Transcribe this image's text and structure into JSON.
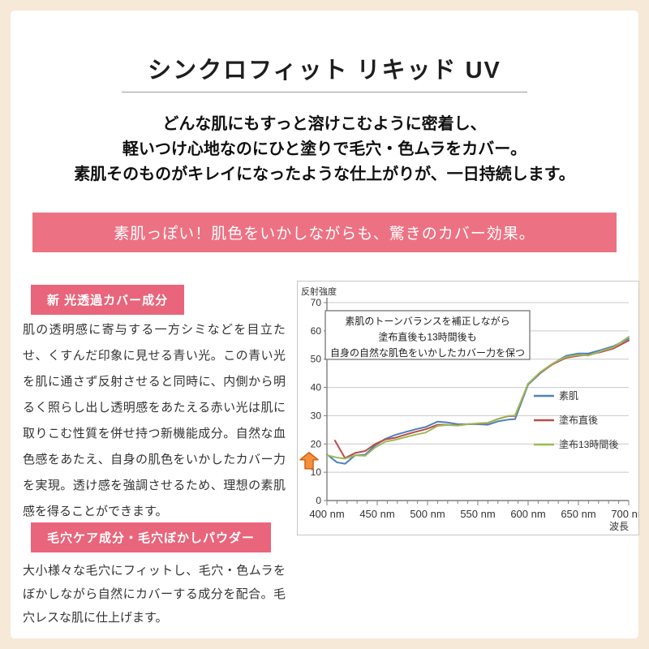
{
  "page": {
    "title": "シンクロフィット リキッド UV",
    "intro_lines": [
      "どんな肌にもすっと溶けこむように密着し、",
      "軽いつけ心地なのにひと塗りで毛穴・色ムラをカバー。",
      "素肌そのものがキレイになったような仕上がりが、一日持続します。"
    ],
    "banner": "素肌っぽい！肌色をいかしながらも、驚きのカバー効果。"
  },
  "sections": [
    {
      "badge": "新 光透過カバー成分",
      "body": "肌の透明感に寄与する一方シミなどを目立たせ、くすんだ印象に見せる青い光。この青い光を肌に通さず反射させると同時に、内側から明るく照らし出し透明感をあたえる赤い光は肌に取りこむ性質を併せ持つ新機能成分。自然な血色感をあたえ、自身の肌色をいかしたカバー力を実現。透け感を強調させるため、理想の素肌感を得ることができます。"
    },
    {
      "badge": "毛穴ケア成分・毛穴ぼかしパウダー",
      "body": "大小様々な毛穴にフィットし、毛穴・色ムラをぼかしながら自然にカバーする成分を配合。毛穴レスな肌に仕上げます。"
    }
  ],
  "colors": {
    "background_cream": "#f7e9d7",
    "banner_pink": "#ec7283",
    "badge_pink": "#e8657b",
    "arrow_orange_fill": "#f1913f",
    "arrow_orange_stroke": "#d95f0e"
  },
  "chart_data": {
    "type": "line",
    "ylabel": "反射強度",
    "xlabel": "波長",
    "ylim": [
      0,
      70
    ],
    "xlim": [
      400,
      700
    ],
    "yticks": [
      0,
      10,
      20,
      30,
      40,
      50,
      60,
      70
    ],
    "xticks_major": [
      400,
      450,
      500,
      550,
      600,
      650,
      700
    ],
    "xtick_label_suffix": " nm",
    "xtick_minor_step": 10,
    "grid": "horizontal",
    "legend_position": "right-inside",
    "annotation_lines": [
      "素肌のトーンバランスを補正しながら",
      "塗布直後も13時間後も",
      "自身の自然な肌色をいかしたカバー力を保つ"
    ],
    "annotation_arrow": {
      "x": 400,
      "y": 17,
      "shape": "block-arrow-up",
      "color": "#f1913f"
    },
    "series": [
      {
        "name": "素肌",
        "color": "#4f81bd",
        "x": [
          400,
          410,
          418,
          428,
          438,
          448,
          458,
          468,
          478,
          488,
          498,
          510,
          520,
          530,
          540,
          550,
          560,
          570,
          580,
          587,
          600,
          612,
          625,
          638,
          650,
          660,
          672,
          685,
          700
        ],
        "y": [
          16.3,
          13.5,
          13.0,
          16.0,
          16.2,
          19.5,
          21.8,
          23.2,
          24.2,
          25.2,
          26.0,
          27.9,
          27.6,
          27.0,
          27.0,
          27.0,
          26.8,
          28.0,
          28.6,
          28.8,
          41.0,
          45.0,
          48.5,
          51.2,
          52.0,
          52.0,
          53.2,
          54.6,
          57.3
        ]
      },
      {
        "name": "塗布直後",
        "color": "#be4b48",
        "x": [
          408,
          418,
          428,
          438,
          448,
          458,
          468,
          478,
          488,
          498,
          510,
          520,
          530,
          540,
          550,
          560,
          570,
          580,
          587,
          600,
          612,
          625,
          638,
          650,
          660,
          672,
          685,
          700
        ],
        "y": [
          21.2,
          15.0,
          16.8,
          17.5,
          20.0,
          21.6,
          22.2,
          23.3,
          24.3,
          25.2,
          26.8,
          26.8,
          26.6,
          27.0,
          27.2,
          27.4,
          28.8,
          29.8,
          29.9,
          41.3,
          45.2,
          48.3,
          50.5,
          51.2,
          51.5,
          52.5,
          53.8,
          56.6
        ]
      },
      {
        "name": "塗布13時間後",
        "color": "#9bbb59",
        "x": [
          400,
          410,
          418,
          428,
          438,
          448,
          458,
          468,
          478,
          488,
          498,
          510,
          520,
          530,
          540,
          550,
          560,
          570,
          580,
          587,
          600,
          612,
          625,
          638,
          650,
          660,
          672,
          685,
          700
        ],
        "y": [
          16.0,
          15.2,
          14.8,
          16.0,
          15.8,
          18.8,
          20.8,
          21.5,
          22.4,
          23.3,
          24.0,
          26.4,
          26.7,
          26.5,
          27.0,
          27.3,
          27.5,
          28.9,
          29.9,
          30.1,
          41.3,
          45.4,
          48.6,
          50.8,
          51.5,
          51.3,
          52.8,
          54.2,
          57.9
        ]
      }
    ]
  }
}
